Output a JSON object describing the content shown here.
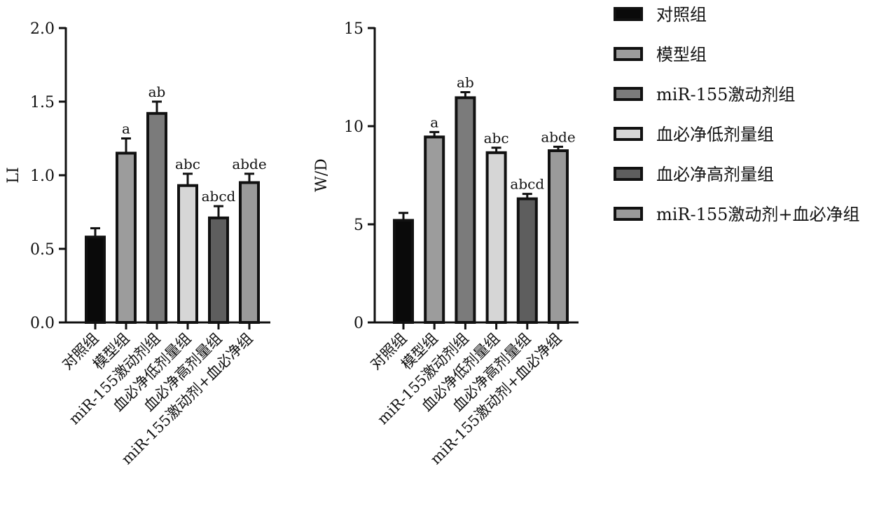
{
  "colors": {
    "axis": "#111111",
    "groups": [
      "#0a0a0a",
      "#9c9c9c",
      "#7b7b7b",
      "#d6d6d6",
      "#5e5e5e",
      "#9a9a9a"
    ]
  },
  "legend": {
    "placement": "top-right",
    "items": [
      "对照组",
      "模型组",
      "miR-155激动剂组",
      "血必净低剂量组",
      "血必净高剂量组",
      "miR-155激动剂+血必净组"
    ]
  },
  "chart_data": [
    {
      "type": "bar",
      "title": "",
      "xlabel": "",
      "ylabel": "LI",
      "ylim": [
        0,
        2.0
      ],
      "yticks": [
        0.0,
        0.5,
        1.0,
        1.5,
        2.0
      ],
      "ytick_labels": [
        "0.0",
        "0.5",
        "1.0",
        "1.5",
        "2.0"
      ],
      "categories": [
        "对照组",
        "模型组",
        "miR-155激动剂组",
        "血必净低剂量组",
        "血必净高剂量组",
        "miR-155激动剂+血必净组"
      ],
      "values": [
        0.58,
        1.15,
        1.42,
        0.93,
        0.71,
        0.95
      ],
      "errors": [
        0.06,
        0.1,
        0.08,
        0.08,
        0.08,
        0.06
      ],
      "annotations": [
        "",
        "a",
        "ab",
        "abc",
        "abcd",
        "abde"
      ],
      "grid": false
    },
    {
      "type": "bar",
      "title": "",
      "xlabel": "",
      "ylabel": "W/D",
      "ylim": [
        0,
        15
      ],
      "yticks": [
        0,
        5,
        10,
        15
      ],
      "ytick_labels": [
        "0",
        "5",
        "10",
        "15"
      ],
      "categories": [
        "对照组",
        "模型组",
        "miR-155激动剂组",
        "血必净低剂量组",
        "血必净高剂量组",
        "miR-155激动剂+血必净组"
      ],
      "values": [
        5.2,
        9.45,
        11.45,
        8.65,
        6.3,
        8.75
      ],
      "errors": [
        0.38,
        0.25,
        0.28,
        0.25,
        0.25,
        0.2
      ],
      "annotations": [
        "",
        "a",
        "ab",
        "abc",
        "abcd",
        "abde"
      ],
      "grid": false
    }
  ]
}
